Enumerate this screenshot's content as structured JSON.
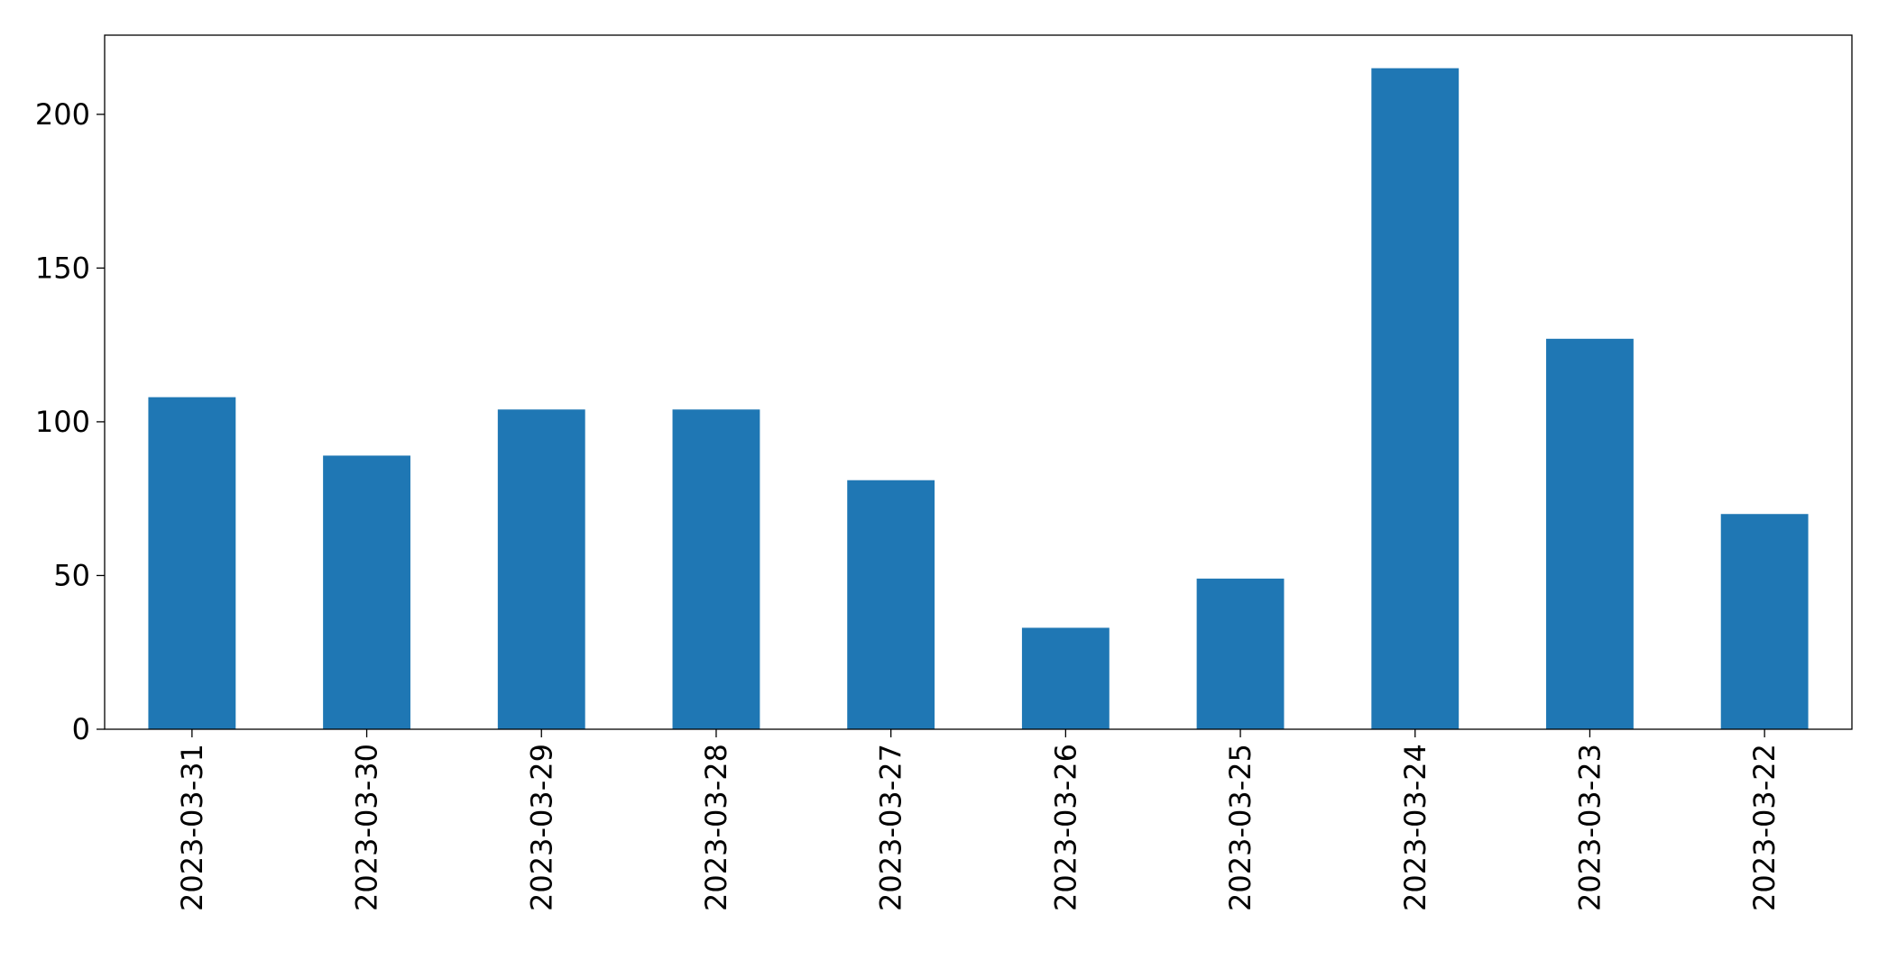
{
  "chart_data": {
    "type": "bar",
    "categories": [
      "2023-03-31",
      "2023-03-30",
      "2023-03-29",
      "2023-03-28",
      "2023-03-27",
      "2023-03-26",
      "2023-03-25",
      "2023-03-24",
      "2023-03-23",
      "2023-03-22"
    ],
    "values": [
      108,
      89,
      104,
      104,
      81,
      33,
      49,
      215,
      127,
      70
    ],
    "color": "#1f77b4",
    "ylim": [
      0,
      225.75
    ],
    "yticks": [
      0,
      50,
      100,
      150,
      200
    ],
    "grid": false
  }
}
